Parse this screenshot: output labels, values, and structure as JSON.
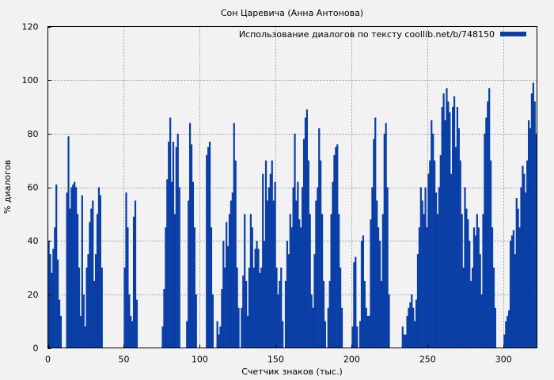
{
  "chart_data": {
    "type": "bar",
    "title": "Сон Царевича (Анна Антонова)",
    "xlabel": "Счетчик знаков (тыс.)",
    "ylabel": "% диалогов",
    "xlim": [
      0,
      322
    ],
    "ylim": [
      0,
      120
    ],
    "xticks": [
      0,
      50,
      100,
      150,
      200,
      250,
      300
    ],
    "yticks": [
      0,
      20,
      40,
      60,
      80,
      100,
      120
    ],
    "grid": true,
    "legend_position": "top-right",
    "series": [
      {
        "name": "Использование диалогов по тексту coollib.net/b/748150",
        "color": "#0a3fa6",
        "values": [
          [
            0,
            40
          ],
          [
            1,
            35
          ],
          [
            2,
            28
          ],
          [
            3,
            37
          ],
          [
            4,
            45
          ],
          [
            5,
            61
          ],
          [
            6,
            33
          ],
          [
            7,
            18
          ],
          [
            8,
            12
          ],
          [
            12,
            58
          ],
          [
            13,
            79
          ],
          [
            14,
            52
          ],
          [
            15,
            60
          ],
          [
            16,
            61
          ],
          [
            17,
            62
          ],
          [
            18,
            60
          ],
          [
            19,
            50
          ],
          [
            20,
            30
          ],
          [
            21,
            12
          ],
          [
            22,
            57
          ],
          [
            23,
            20
          ],
          [
            24,
            8
          ],
          [
            25,
            30
          ],
          [
            26,
            35
          ],
          [
            27,
            47
          ],
          [
            28,
            52
          ],
          [
            29,
            55
          ],
          [
            30,
            25
          ],
          [
            31,
            35
          ],
          [
            32,
            50
          ],
          [
            33,
            60
          ],
          [
            34,
            57
          ],
          [
            35,
            30
          ],
          [
            50,
            30
          ],
          [
            51,
            58
          ],
          [
            52,
            45
          ],
          [
            53,
            20
          ],
          [
            54,
            12
          ],
          [
            55,
            10
          ],
          [
            56,
            49
          ],
          [
            57,
            55
          ],
          [
            58,
            18
          ],
          [
            75,
            8
          ],
          [
            76,
            22
          ],
          [
            77,
            45
          ],
          [
            78,
            63
          ],
          [
            79,
            77
          ],
          [
            80,
            86
          ],
          [
            81,
            62
          ],
          [
            82,
            77
          ],
          [
            83,
            50
          ],
          [
            84,
            75
          ],
          [
            85,
            80
          ],
          [
            86,
            60
          ],
          [
            91,
            10
          ],
          [
            92,
            55
          ],
          [
            93,
            84
          ],
          [
            94,
            76
          ],
          [
            95,
            62
          ],
          [
            96,
            45
          ],
          [
            97,
            20
          ],
          [
            104,
            72
          ],
          [
            105,
            75
          ],
          [
            106,
            77
          ],
          [
            107,
            45
          ],
          [
            108,
            20
          ],
          [
            111,
            10
          ],
          [
            112,
            5
          ],
          [
            113,
            8
          ],
          [
            114,
            22
          ],
          [
            115,
            40
          ],
          [
            116,
            30
          ],
          [
            117,
            47
          ],
          [
            118,
            38
          ],
          [
            119,
            50
          ],
          [
            120,
            55
          ],
          [
            121,
            58
          ],
          [
            122,
            84
          ],
          [
            123,
            70
          ],
          [
            124,
            30
          ],
          [
            125,
            15
          ],
          [
            127,
            15
          ],
          [
            128,
            27
          ],
          [
            129,
            50
          ],
          [
            130,
            25
          ],
          [
            131,
            12
          ],
          [
            132,
            30
          ],
          [
            133,
            50
          ],
          [
            134,
            45
          ],
          [
            135,
            30
          ],
          [
            136,
            37
          ],
          [
            137,
            40
          ],
          [
            138,
            37
          ],
          [
            139,
            28
          ],
          [
            140,
            30
          ],
          [
            141,
            65
          ],
          [
            142,
            40
          ],
          [
            143,
            70
          ],
          [
            144,
            55
          ],
          [
            145,
            60
          ],
          [
            146,
            65
          ],
          [
            147,
            70
          ],
          [
            148,
            55
          ],
          [
            149,
            62
          ],
          [
            150,
            30
          ],
          [
            151,
            20
          ],
          [
            152,
            25
          ],
          [
            153,
            30
          ],
          [
            154,
            10
          ],
          [
            156,
            25
          ],
          [
            157,
            40
          ],
          [
            158,
            35
          ],
          [
            159,
            50
          ],
          [
            160,
            45
          ],
          [
            161,
            60
          ],
          [
            162,
            80
          ],
          [
            163,
            55
          ],
          [
            164,
            62
          ],
          [
            165,
            48
          ],
          [
            166,
            45
          ],
          [
            167,
            60
          ],
          [
            168,
            78
          ],
          [
            169,
            86
          ],
          [
            170,
            89
          ],
          [
            171,
            70
          ],
          [
            172,
            50
          ],
          [
            173,
            20
          ],
          [
            174,
            15
          ],
          [
            175,
            35
          ],
          [
            176,
            55
          ],
          [
            177,
            60
          ],
          [
            178,
            82
          ],
          [
            179,
            70
          ],
          [
            180,
            50
          ],
          [
            181,
            25
          ],
          [
            182,
            10
          ],
          [
            184,
            15
          ],
          [
            185,
            25
          ],
          [
            186,
            50
          ],
          [
            187,
            62
          ],
          [
            188,
            72
          ],
          [
            189,
            75
          ],
          [
            190,
            76
          ],
          [
            191,
            50
          ],
          [
            192,
            30
          ],
          [
            193,
            15
          ],
          [
            200,
            8
          ],
          [
            201,
            32
          ],
          [
            202,
            34
          ],
          [
            203,
            8
          ],
          [
            205,
            10
          ],
          [
            206,
            40
          ],
          [
            207,
            42
          ],
          [
            208,
            25
          ],
          [
            209,
            15
          ],
          [
            210,
            12
          ],
          [
            211,
            12
          ],
          [
            212,
            48
          ],
          [
            213,
            60
          ],
          [
            214,
            78
          ],
          [
            215,
            86
          ],
          [
            216,
            55
          ],
          [
            217,
            45
          ],
          [
            218,
            40
          ],
          [
            219,
            25
          ],
          [
            220,
            50
          ],
          [
            221,
            80
          ],
          [
            222,
            84
          ],
          [
            223,
            60
          ],
          [
            224,
            20
          ],
          [
            233,
            8
          ],
          [
            234,
            5
          ],
          [
            235,
            5
          ],
          [
            236,
            12
          ],
          [
            237,
            15
          ],
          [
            238,
            17
          ],
          [
            239,
            20
          ],
          [
            240,
            15
          ],
          [
            241,
            10
          ],
          [
            242,
            18
          ],
          [
            243,
            35
          ],
          [
            244,
            45
          ],
          [
            245,
            60
          ],
          [
            246,
            55
          ],
          [
            247,
            50
          ],
          [
            248,
            60
          ],
          [
            249,
            45
          ],
          [
            250,
            65
          ],
          [
            251,
            70
          ],
          [
            252,
            85
          ],
          [
            253,
            80
          ],
          [
            254,
            70
          ],
          [
            255,
            58
          ],
          [
            256,
            50
          ],
          [
            257,
            60
          ],
          [
            258,
            72
          ],
          [
            259,
            90
          ],
          [
            260,
            95
          ],
          [
            261,
            85
          ],
          [
            262,
            97
          ],
          [
            263,
            92
          ],
          [
            264,
            88
          ],
          [
            265,
            65
          ],
          [
            266,
            90
          ],
          [
            267,
            94
          ],
          [
            268,
            75
          ],
          [
            269,
            90
          ],
          [
            270,
            82
          ],
          [
            271,
            70
          ],
          [
            272,
            50
          ],
          [
            273,
            30
          ],
          [
            274,
            60
          ],
          [
            275,
            52
          ],
          [
            276,
            48
          ],
          [
            277,
            40
          ],
          [
            278,
            25
          ],
          [
            279,
            30
          ],
          [
            280,
            45
          ],
          [
            281,
            42
          ],
          [
            282,
            50
          ],
          [
            283,
            45
          ],
          [
            284,
            35
          ],
          [
            285,
            20
          ],
          [
            286,
            50
          ],
          [
            287,
            80
          ],
          [
            288,
            86
          ],
          [
            289,
            92
          ],
          [
            290,
            97
          ],
          [
            291,
            70
          ],
          [
            292,
            45
          ],
          [
            293,
            30
          ],
          [
            294,
            15
          ],
          [
            300,
            5
          ],
          [
            301,
            10
          ],
          [
            302,
            12
          ],
          [
            303,
            14
          ],
          [
            304,
            40
          ],
          [
            305,
            42
          ],
          [
            306,
            44
          ],
          [
            307,
            35
          ],
          [
            308,
            56
          ],
          [
            309,
            52
          ],
          [
            310,
            45
          ],
          [
            311,
            60
          ],
          [
            312,
            68
          ],
          [
            313,
            65
          ],
          [
            314,
            58
          ],
          [
            315,
            70
          ],
          [
            316,
            85
          ],
          [
            317,
            82
          ],
          [
            318,
            95
          ],
          [
            319,
            99
          ],
          [
            320,
            92
          ],
          [
            321,
            80
          ]
        ]
      }
    ]
  }
}
